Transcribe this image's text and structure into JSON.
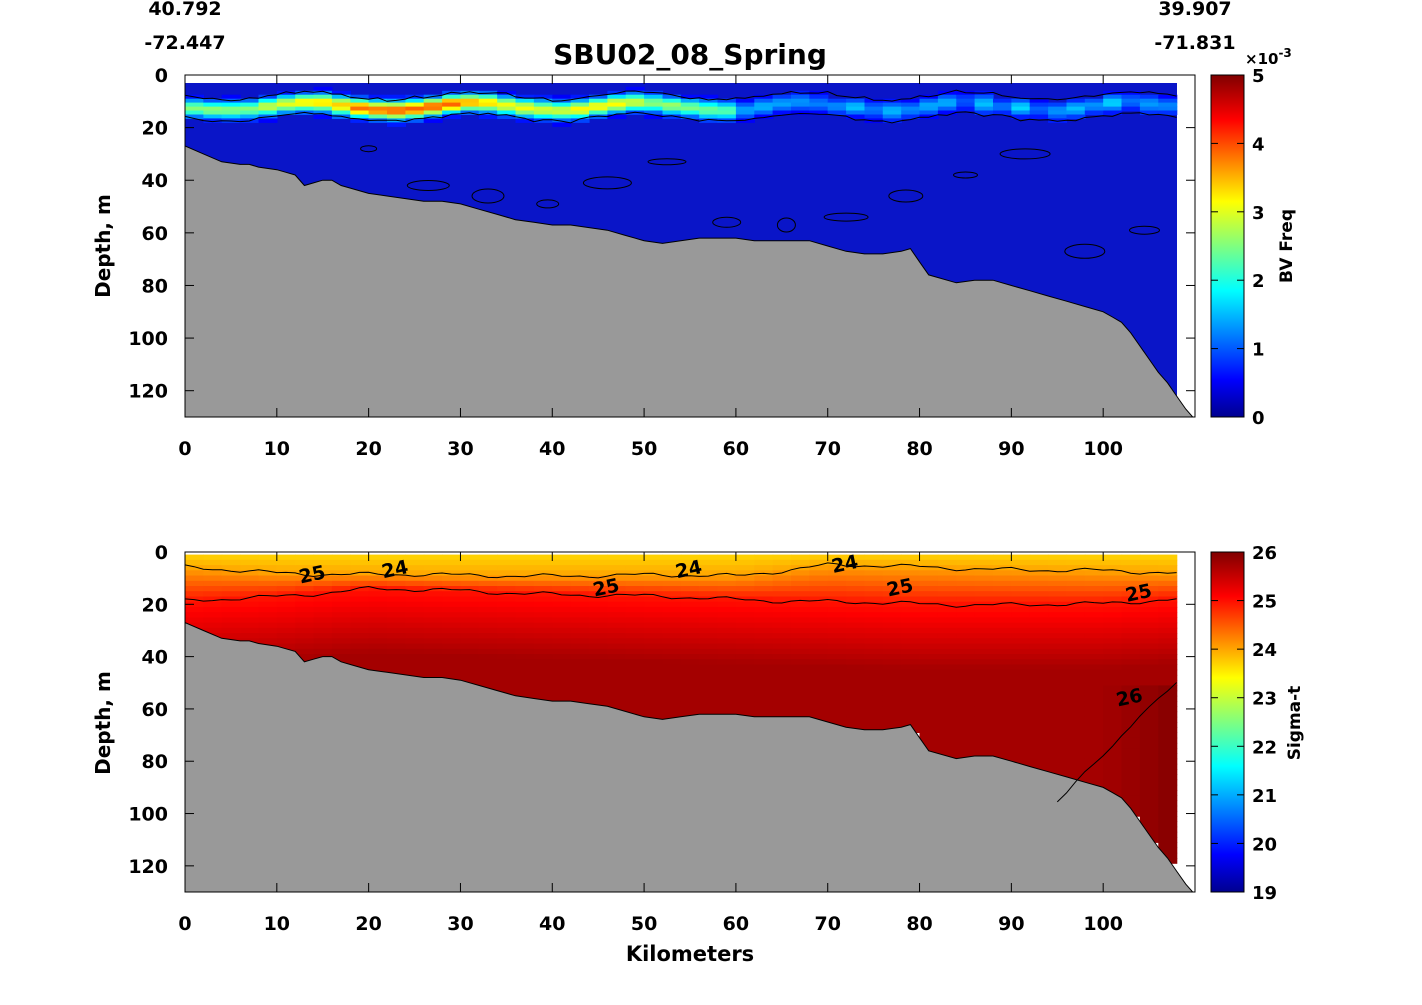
{
  "figure": {
    "title": "SBU02_08_Spring",
    "start": {
      "lat": "40.792",
      "lon": "-72.447"
    },
    "end": {
      "lat": "39.907",
      "lon": "-71.831"
    }
  },
  "colors": {
    "background": "#ffffff",
    "bottom": "#999999",
    "contour": "#000000",
    "jet": [
      "#00008f",
      "#0000ff",
      "#00ffff",
      "#ffff00",
      "#ff0000",
      "#800000"
    ]
  },
  "chart_data": [
    {
      "type": "heatmap",
      "name": "bv",
      "title": "",
      "xlabel": "",
      "ylabel": "Depth, m",
      "colorbar_label": "BV Freq",
      "colorbar_multiplier": "×10",
      "colorbar_exponent": "-3",
      "colorbar_range": [
        0,
        5
      ],
      "colorbar_ticks": [
        "0",
        "1",
        "2",
        "3",
        "4",
        "5"
      ],
      "xlim": [
        0,
        110
      ],
      "ylim": [
        0,
        130
      ],
      "y_reversed": true,
      "x_ticks": [
        "0",
        "10",
        "20",
        "30",
        "40",
        "50",
        "60",
        "70",
        "80",
        "90",
        "100"
      ],
      "y_ticks": [
        "0",
        "20",
        "40",
        "60",
        "80",
        "100",
        "120"
      ],
      "grid": false,
      "data_extent_km": [
        0,
        108
      ],
      "surface_gap_depth_m": 3,
      "max_layer": {
        "center_depth_m": 12,
        "halfwidth_m": 3.5,
        "peak_km": 24,
        "peak_value": 4.6
      },
      "contour_levels": [
        0.5,
        1.5,
        3.5
      ],
      "contour_labels": []
    },
    {
      "type": "heatmap",
      "name": "sigma",
      "title": "",
      "xlabel": "Kilometers",
      "ylabel": "Depth, m",
      "colorbar_label": "Sigma-t",
      "colorbar_range": [
        19,
        26
      ],
      "colorbar_ticks": [
        "19",
        "20",
        "21",
        "22",
        "23",
        "24",
        "25",
        "26"
      ],
      "xlim": [
        0,
        110
      ],
      "ylim": [
        0,
        130
      ],
      "y_reversed": true,
      "x_ticks": [
        "0",
        "10",
        "20",
        "30",
        "40",
        "50",
        "60",
        "70",
        "80",
        "90",
        "100"
      ],
      "y_ticks": [
        "0",
        "20",
        "40",
        "60",
        "80",
        "100",
        "120"
      ],
      "grid": false,
      "data_extent_km": [
        0,
        108
      ],
      "surface_gap_depth_m": 1,
      "surface_value": 23.6,
      "deep_value": 25.75,
      "isopycnal_24_m": [
        [
          0,
          6
        ],
        [
          10,
          8
        ],
        [
          30,
          9
        ],
        [
          60,
          9
        ],
        [
          70,
          5
        ],
        [
          108,
          8
        ]
      ],
      "isopycnal_25_m": [
        [
          0,
          19
        ],
        [
          10,
          17
        ],
        [
          20,
          14
        ],
        [
          40,
          16
        ],
        [
          60,
          18
        ],
        [
          80,
          20
        ],
        [
          100,
          20
        ],
        [
          108,
          18
        ]
      ],
      "isopycnal_26_m": [
        [
          95,
          95
        ],
        [
          101,
          75
        ],
        [
          104,
          62
        ],
        [
          108,
          50
        ]
      ],
      "contour_levels": [
        24,
        25,
        26
      ],
      "contour_labels": [
        {
          "text": "24",
          "km": 23,
          "m": 9
        },
        {
          "text": "24",
          "km": 55,
          "m": 9
        },
        {
          "text": "24",
          "km": 72,
          "m": 7
        },
        {
          "text": "25",
          "km": 14,
          "m": 11
        },
        {
          "text": "25",
          "km": 46,
          "m": 16
        },
        {
          "text": "25",
          "km": 78,
          "m": 16
        },
        {
          "text": "25",
          "km": 104,
          "m": 18
        },
        {
          "text": "26",
          "km": 103,
          "m": 58
        }
      ]
    }
  ],
  "bathymetry_m": [
    [
      0,
      27
    ],
    [
      2,
      30
    ],
    [
      4,
      33
    ],
    [
      6,
      34
    ],
    [
      7,
      34
    ],
    [
      8,
      35
    ],
    [
      10,
      36
    ],
    [
      11,
      37
    ],
    [
      12,
      38
    ],
    [
      13,
      42
    ],
    [
      14,
      41
    ],
    [
      15,
      40
    ],
    [
      16,
      40
    ],
    [
      17,
      42
    ],
    [
      18,
      43
    ],
    [
      20,
      45
    ],
    [
      22,
      46
    ],
    [
      24,
      47
    ],
    [
      26,
      48
    ],
    [
      28,
      48
    ],
    [
      30,
      49
    ],
    [
      32,
      51
    ],
    [
      34,
      53
    ],
    [
      36,
      55
    ],
    [
      38,
      56
    ],
    [
      40,
      57
    ],
    [
      42,
      57
    ],
    [
      44,
      58
    ],
    [
      46,
      59
    ],
    [
      48,
      61
    ],
    [
      50,
      63
    ],
    [
      52,
      64
    ],
    [
      54,
      63
    ],
    [
      56,
      62
    ],
    [
      58,
      62
    ],
    [
      60,
      62
    ],
    [
      62,
      63
    ],
    [
      64,
      63
    ],
    [
      66,
      63
    ],
    [
      68,
      63
    ],
    [
      70,
      65
    ],
    [
      72,
      67
    ],
    [
      74,
      68
    ],
    [
      76,
      68
    ],
    [
      78,
      67
    ],
    [
      79,
      66
    ],
    [
      80,
      71
    ],
    [
      81,
      76
    ],
    [
      84,
      79
    ],
    [
      86,
      78
    ],
    [
      88,
      78
    ],
    [
      90,
      80
    ],
    [
      92,
      82
    ],
    [
      94,
      84
    ],
    [
      96,
      86
    ],
    [
      98,
      88
    ],
    [
      100,
      90
    ],
    [
      101,
      92
    ],
    [
      102,
      94
    ],
    [
      103,
      98
    ],
    [
      104,
      103
    ],
    [
      105,
      108
    ],
    [
      106,
      113
    ],
    [
      107,
      117
    ],
    [
      108,
      122
    ],
    [
      109,
      127
    ],
    [
      110,
      131
    ]
  ]
}
